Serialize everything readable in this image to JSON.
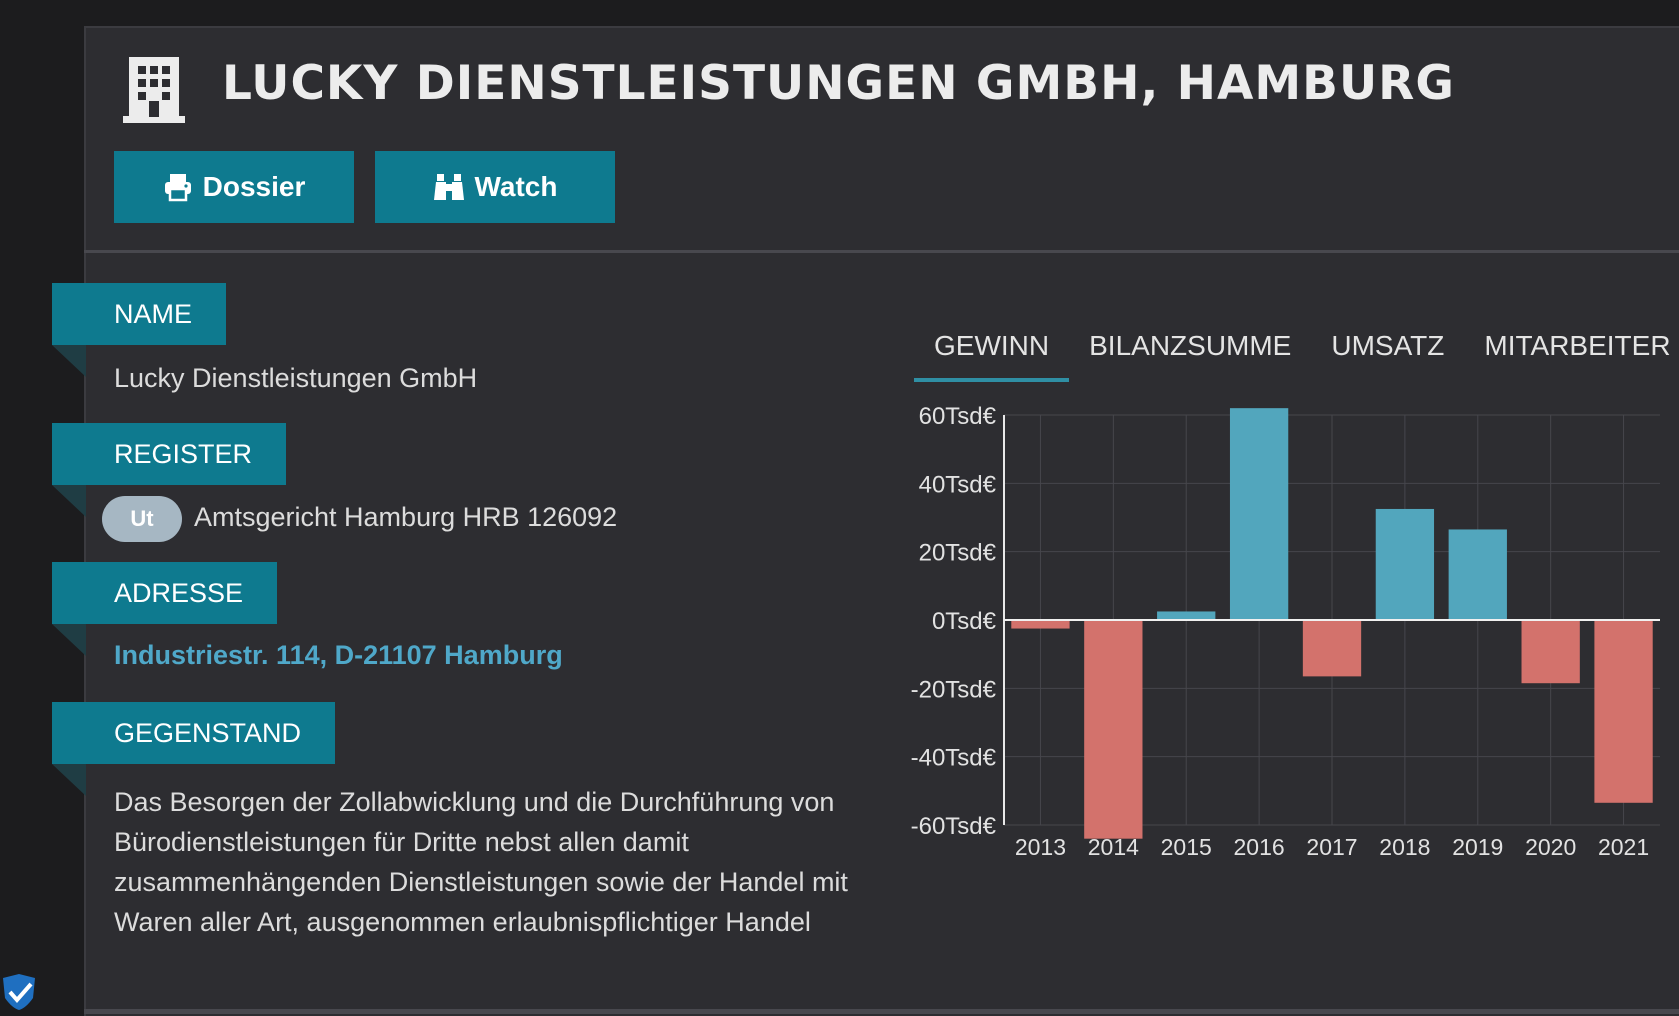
{
  "header": {
    "title": "LUCKY DIENSTLEISTUNGEN GMBH, HAMBURG",
    "icon": "building-icon",
    "buttons": [
      {
        "label": "Dossier",
        "icon": "printer-icon"
      },
      {
        "label": "Watch",
        "icon": "binoculars-icon"
      }
    ]
  },
  "fields": {
    "name": {
      "label": "NAME",
      "value": "Lucky Dienstleistungen GmbH"
    },
    "register": {
      "label": "REGISTER",
      "badge": "Ut",
      "value": "Amtsgericht Hamburg HRB 126092"
    },
    "address": {
      "label": "ADRESSE",
      "value": "Industriestr. 114, D-21107 Hamburg"
    },
    "purpose": {
      "label": "GEGENSTAND",
      "value": "Das Besorgen der Zollabwicklung und die Durchführung von Bürodienstleistungen für Dritte nebst allen damit zusammenhängenden Dienstleistungen sowie der Handel mit Waren aller Art, ausgenommen erlaubnispflichtiger Handel"
    }
  },
  "tabs": [
    {
      "label": "GEWINN",
      "active": true
    },
    {
      "label": "BILANZSUMME",
      "active": false
    },
    {
      "label": "UMSATZ",
      "active": false
    },
    {
      "label": "MITARBEITER",
      "active": false
    }
  ],
  "colors": {
    "accent": "#0e7a8f",
    "positive": "#52a6bd",
    "negative": "#d3726c",
    "link": "#4fa8c9",
    "badge": "#a6b7c3"
  },
  "chart_data": {
    "type": "bar",
    "categories": [
      "2013",
      "2014",
      "2015",
      "2016",
      "2017",
      "2018",
      "2019",
      "2020",
      "2021"
    ],
    "values": [
      -2.5,
      -64,
      2.5,
      62,
      -16.5,
      32.5,
      26.5,
      -18.5,
      -53.5
    ],
    "ylim": [
      -60,
      60
    ],
    "yticks": [
      60,
      40,
      20,
      0,
      -20,
      -40,
      -60
    ],
    "ytick_labels": [
      "60Tsd€",
      "40Tsd€",
      "20Tsd€",
      "0Tsd€",
      "-20Tsd€",
      "-40Tsd€",
      "-60Tsd€"
    ],
    "grid": true
  }
}
